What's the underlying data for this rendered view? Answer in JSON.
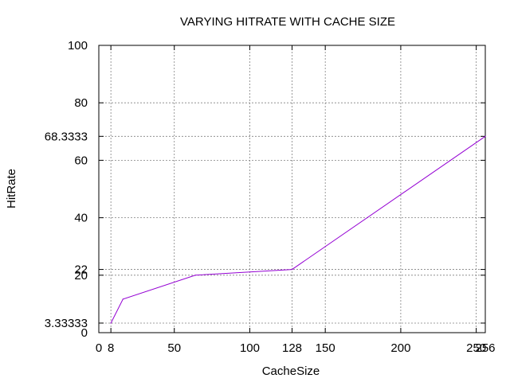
{
  "chart_data": {
    "type": "line",
    "title": "VARYING HITRATE WITH CACHE SIZE",
    "xlabel": "CacheSize",
    "ylabel": "HitRate",
    "xlim": [
      0,
      256
    ],
    "ylim": [
      0,
      100
    ],
    "x_ticks": [
      {
        "value": 0,
        "label": "0"
      },
      {
        "value": 8,
        "label": "8"
      },
      {
        "value": 50,
        "label": "50"
      },
      {
        "value": 100,
        "label": "100"
      },
      {
        "value": 128,
        "label": "128"
      },
      {
        "value": 150,
        "label": "150"
      },
      {
        "value": 200,
        "label": "200"
      },
      {
        "value": 250,
        "label": "250"
      },
      {
        "value": 256,
        "label": "256"
      }
    ],
    "y_ticks": [
      {
        "value": 0,
        "label": "0"
      },
      {
        "value": 3.33333,
        "label": "3.33333"
      },
      {
        "value": 20,
        "label": "20"
      },
      {
        "value": 22,
        "label": "22"
      },
      {
        "value": 40,
        "label": "40"
      },
      {
        "value": 60,
        "label": "60"
      },
      {
        "value": 68.3333,
        "label": "68.3333"
      },
      {
        "value": 80,
        "label": "80"
      },
      {
        "value": 100,
        "label": "100"
      }
    ],
    "x_grid": [
      8,
      50,
      100,
      128,
      150,
      200,
      250,
      256
    ],
    "y_grid": [
      3.33333,
      20,
      22,
      40,
      60,
      68.3333,
      80
    ],
    "grid": true,
    "series": [
      {
        "color": "#9400d3",
        "points": [
          [
            8,
            3.33333
          ],
          [
            16,
            11.6667
          ],
          [
            64,
            20
          ],
          [
            128,
            22
          ],
          [
            256,
            68.3333
          ]
        ]
      }
    ]
  }
}
